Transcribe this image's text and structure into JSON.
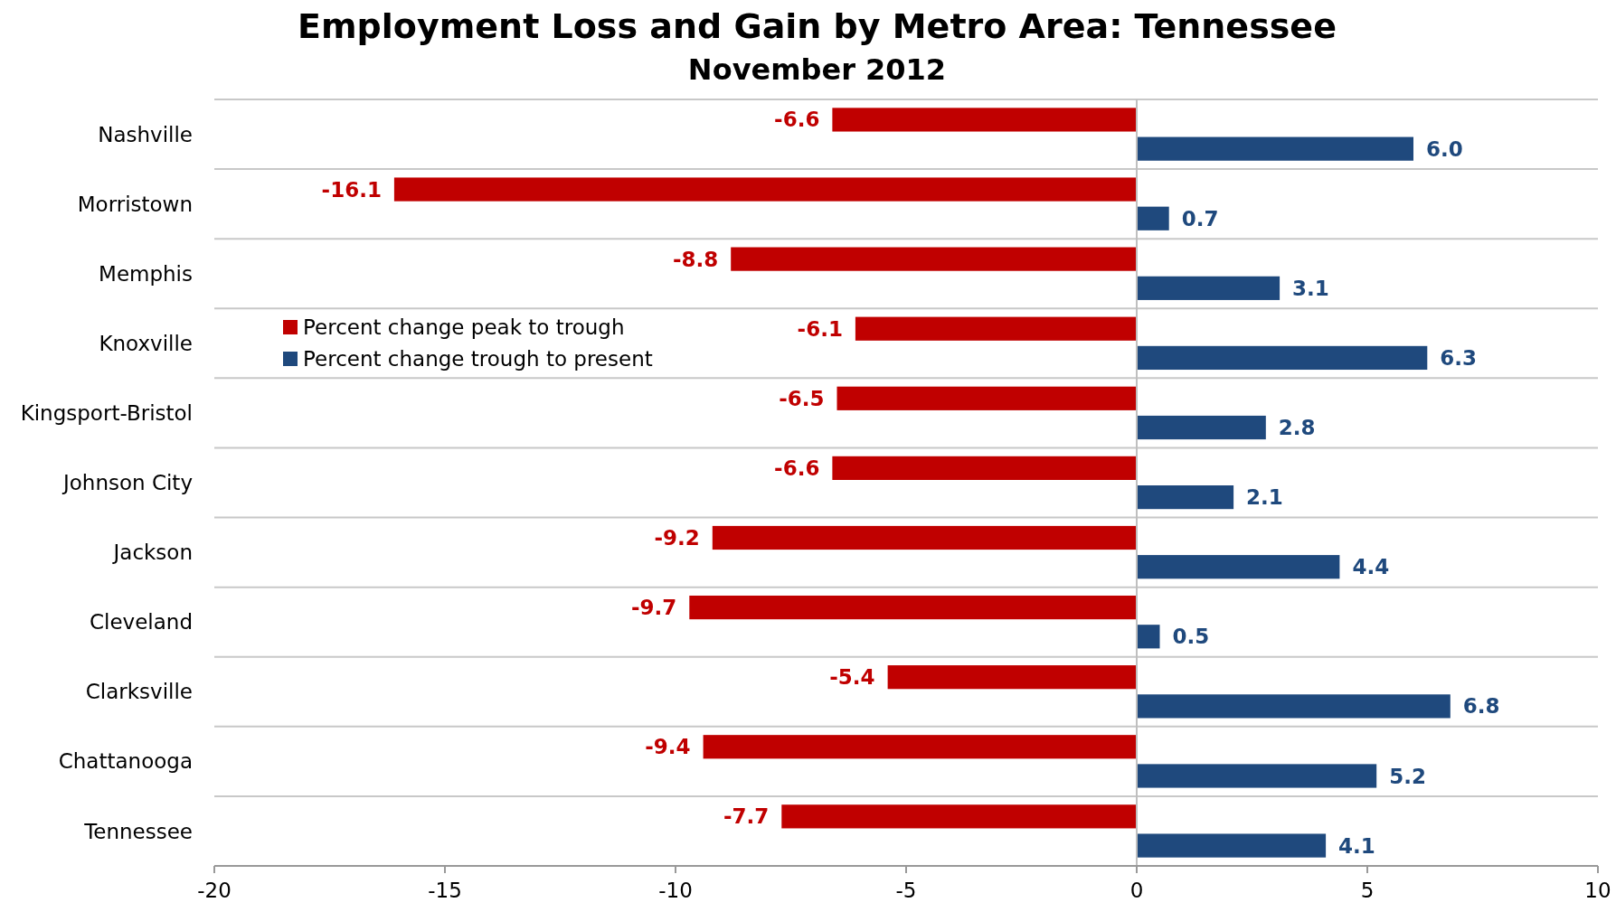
{
  "chart_data": {
    "type": "bar",
    "orientation": "horizontal",
    "title": "Employment Loss and Gain by Metro Area: Tennessee",
    "subtitle": "November 2012",
    "categories": [
      "Nashville",
      "Morristown",
      "Memphis",
      "Knoxville",
      "Kingsport-Bristol",
      "Johnson City",
      "Jackson",
      "Cleveland",
      "Clarksville",
      "Chattanooga",
      "Tennessee"
    ],
    "series": [
      {
        "name": "Percent change peak to trough",
        "color": "#c00000",
        "values": [
          -6.6,
          -16.1,
          -8.8,
          -6.1,
          -6.5,
          -6.6,
          -9.2,
          -9.7,
          -5.4,
          -9.4,
          -7.7
        ],
        "value_labels": [
          "-6.6",
          "-16.1",
          "-8.8",
          "-6.1",
          "-6.5",
          "-6.6",
          "-9.2",
          "-9.7",
          "-5.4",
          "-9.4",
          "-7.7"
        ]
      },
      {
        "name": "Percent change trough to present",
        "color": "#1f497d",
        "values": [
          6.0,
          0.7,
          3.1,
          6.3,
          2.8,
          2.1,
          4.4,
          0.5,
          6.8,
          5.2,
          4.1
        ],
        "value_labels": [
          "6.0",
          "0.7",
          "3.1",
          "6.3",
          "2.8",
          "2.1",
          "4.4",
          "0.5",
          "6.8",
          "5.2",
          "4.1"
        ]
      }
    ],
    "xlim": [
      -20,
      10
    ],
    "xticks": [
      -20,
      -15,
      -10,
      -5,
      0,
      5,
      10
    ],
    "grid": "y",
    "legend": "top left"
  }
}
